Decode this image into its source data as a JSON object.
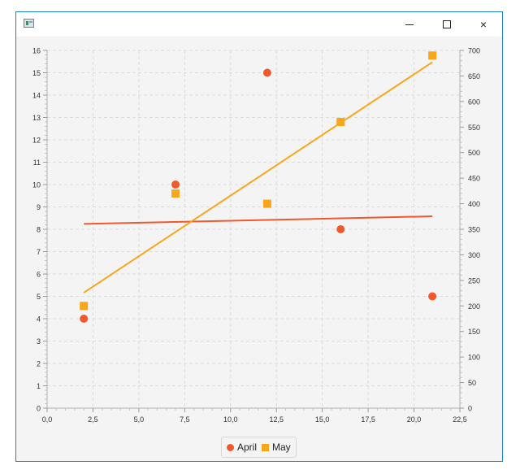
{
  "window": {
    "title": "",
    "controls": {
      "minimize": "minimize",
      "maximize": "maximize",
      "close": "×"
    }
  },
  "chart_data": {
    "type": "scatter",
    "title": "",
    "xlabel": "",
    "ylabel_left": "",
    "ylabel_right": "",
    "xlim": [
      0,
      22.5
    ],
    "ylim_left": [
      0,
      16
    ],
    "ylim_right": [
      0,
      700
    ],
    "x_ticks": [
      "0,0",
      "2,5",
      "5,0",
      "7,5",
      "10,0",
      "12,5",
      "15,0",
      "17,5",
      "20,0",
      "22,5"
    ],
    "y_left_ticks": [
      "0",
      "1",
      "2",
      "3",
      "4",
      "5",
      "6",
      "7",
      "8",
      "9",
      "10",
      "11",
      "12",
      "13",
      "14",
      "15",
      "16"
    ],
    "y_right_ticks": [
      "0",
      "50",
      "100",
      "150",
      "200",
      "250",
      "300",
      "350",
      "400",
      "450",
      "500",
      "550",
      "600",
      "650",
      "700"
    ],
    "grid": true,
    "legend_position": "bottom-center",
    "series": [
      {
        "name": "April",
        "axis": "left",
        "marker": "circle",
        "color": "#f0592b",
        "points": [
          [
            2,
            4
          ],
          [
            7,
            10
          ],
          [
            12,
            15
          ],
          [
            16,
            8
          ],
          [
            21,
            5
          ]
        ],
        "trendline": {
          "x": [
            2,
            21
          ],
          "y": [
            8.24,
            8.58
          ]
        }
      },
      {
        "name": "May",
        "axis": "right",
        "marker": "square",
        "color": "#f8a61c",
        "points": [
          [
            2,
            200
          ],
          [
            7,
            420
          ],
          [
            12,
            400
          ],
          [
            16,
            560
          ],
          [
            21,
            690
          ]
        ],
        "trendline": {
          "x": [
            2,
            21
          ],
          "y": [
            226,
            677
          ]
        }
      }
    ]
  }
}
